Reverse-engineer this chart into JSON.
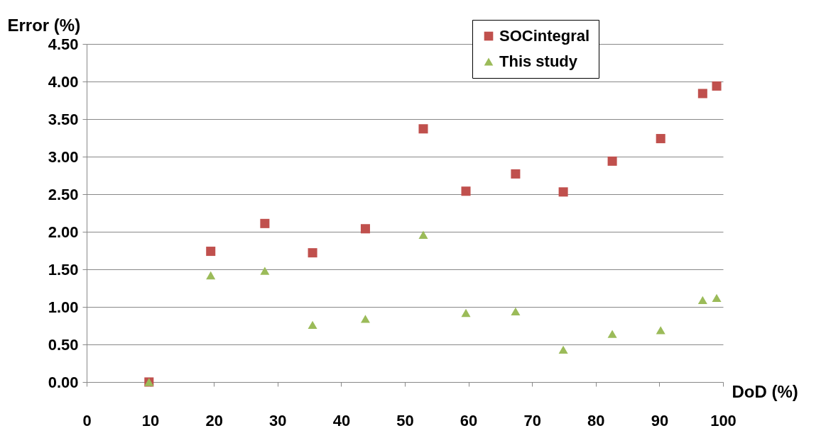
{
  "chart_data": {
    "type": "scatter",
    "xlabel": "DoD (%)",
    "ylabel": "Error (%)",
    "xlim": [
      0,
      100
    ],
    "xticks": [
      0,
      10,
      20,
      30,
      40,
      50,
      60,
      70,
      80,
      90,
      100
    ],
    "ylim": [
      0,
      4.5
    ],
    "yticks": [
      {
        "value": 0,
        "label": "0.00"
      },
      {
        "value": 0.5,
        "label": "0.50"
      },
      {
        "value": 1,
        "label": "1.00"
      },
      {
        "value": 1.5,
        "label": "1.50"
      },
      {
        "value": 2,
        "label": "2.00"
      },
      {
        "value": 2.5,
        "label": "2.50"
      },
      {
        "value": 3,
        "label": "3.00"
      },
      {
        "value": 3.5,
        "label": "3.50"
      },
      {
        "value": 4,
        "label": "4.00"
      },
      {
        "value": 4.5,
        "label": "4.50"
      }
    ],
    "grid": "y",
    "legend": "top right",
    "x": [
      9.8,
      19.5,
      28.0,
      35.5,
      43.8,
      52.9,
      59.6,
      67.4,
      74.9,
      82.6,
      90.2,
      96.8,
      99.0
    ],
    "series": [
      {
        "name": "SOCintegral",
        "color": "#c0504d",
        "marker": "square",
        "values": [
          0.0,
          1.74,
          2.11,
          1.72,
          2.04,
          3.37,
          2.54,
          2.77,
          2.53,
          2.94,
          3.24,
          3.84,
          3.94
        ]
      },
      {
        "name": "This study",
        "color": "#9bbb59",
        "marker": "triangle",
        "values": [
          0.0,
          1.42,
          1.48,
          0.76,
          0.84,
          1.96,
          0.92,
          0.94,
          0.43,
          0.64,
          0.69,
          1.09,
          1.12
        ]
      }
    ]
  }
}
